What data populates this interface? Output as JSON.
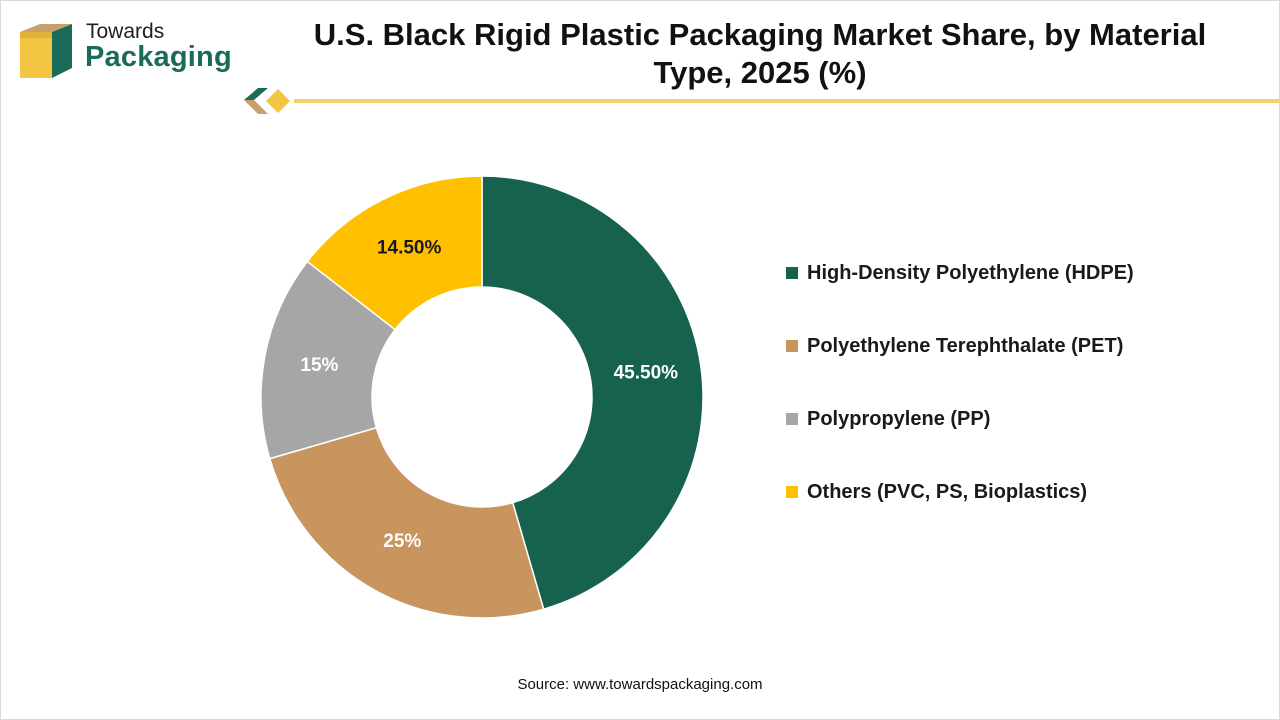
{
  "header": {
    "logo_line1": "Towards",
    "logo_line2": "Packaging",
    "title_line1": "U.S. Black Rigid Plastic Packaging Market Share, by Material",
    "title_line2": "Type, 2025 (%)"
  },
  "colors": {
    "brand_green": "#1a6b5a",
    "brand_gold": "#f4c542",
    "brand_tan": "#c9a06a"
  },
  "chart_data": {
    "type": "pie",
    "style": "donut",
    "title": "U.S. Black Rigid Plastic Packaging Market Share, by Material Type, 2025 (%)",
    "categories": [
      "High-Density Polyethylene (HDPE)",
      "Polyethylene Terephthalate (PET)",
      "Polypropylene (PP)",
      "Others (PVC, PS, Bioplastics)"
    ],
    "values": [
      45.5,
      25,
      15,
      14.5
    ],
    "data_labels": [
      "45.50%",
      "25%",
      "15%",
      "14.50%"
    ],
    "colors": [
      "#17614f",
      "#c9955f",
      "#a6a6a6",
      "#ffc000"
    ],
    "label_colors": [
      "#ffffff",
      "#ffffff",
      "#ffffff",
      "#1a1a1a"
    ],
    "start": "12 o'clock, clockwise",
    "legend_position": "right"
  },
  "footer": {
    "source": "Source: www.towardspackaging.com"
  }
}
